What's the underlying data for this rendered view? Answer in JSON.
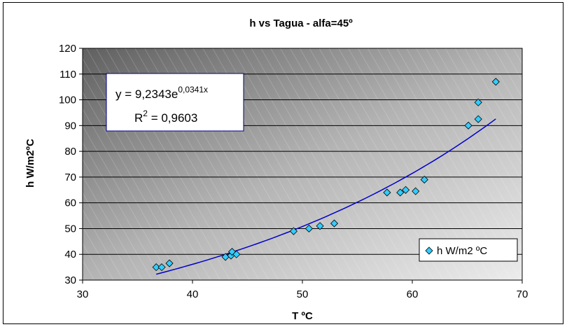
{
  "chart_data": {
    "type": "scatter",
    "title": "h vs Tagua - alfa=45º",
    "xlabel": "T ºC",
    "ylabel": "h W/m2ºC",
    "xlim": [
      30,
      70
    ],
    "ylim": [
      30,
      120
    ],
    "xticks": [
      "30",
      "40",
      "50",
      "60",
      "70"
    ],
    "yticks": [
      "30",
      "40",
      "50",
      "60",
      "70",
      "80",
      "90",
      "100",
      "110",
      "120"
    ],
    "grid": "horizontal",
    "legend_position": "bottom-right",
    "series": [
      {
        "name": "h W/m2 ºC",
        "color": "#33ccff",
        "marker": "diamond",
        "x": [
          36.7,
          37.2,
          37.9,
          43.0,
          43.5,
          43.6,
          44.0,
          49.2,
          50.6,
          51.6,
          52.9,
          57.7,
          58.9,
          59.4,
          60.3,
          61.1,
          65.1,
          66.0,
          66.0,
          67.6
        ],
        "y": [
          35,
          35,
          36.5,
          39,
          39.5,
          41,
          40,
          49,
          50,
          51,
          52,
          64,
          64,
          65,
          64.5,
          69,
          90,
          92.5,
          99,
          107
        ]
      }
    ],
    "trendline": {
      "type": "exponential",
      "a": 9.2343,
      "b": 0.0341,
      "x_range": [
        36.7,
        67.6
      ],
      "color": "#0000cc",
      "equation_prefix": "y = 9,2343e",
      "equation_exponent": "0,0341x",
      "r2_prefix": "R",
      "r2_sup": "2",
      "r2_suffix": " = 0,9603"
    }
  }
}
